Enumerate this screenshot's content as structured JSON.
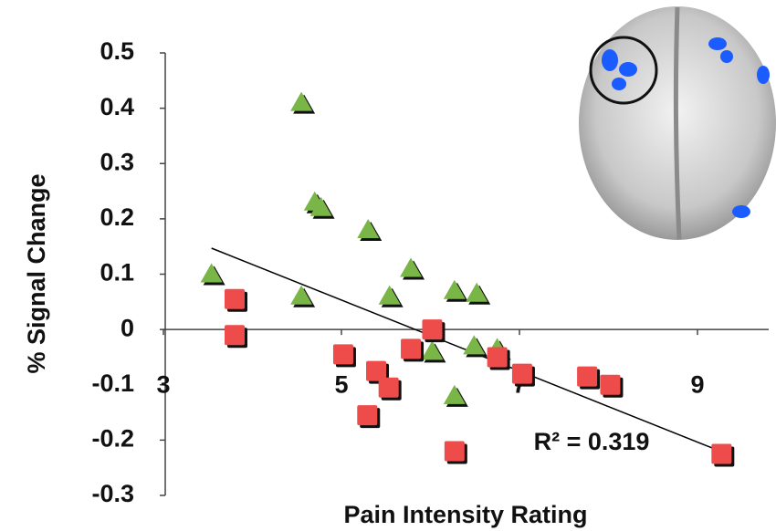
{
  "chart_data": {
    "type": "scatter",
    "xlabel": "Pain Intensity Rating",
    "ylabel": "% Signal Change",
    "xlim": [
      3,
      9.8
    ],
    "ylim": [
      -0.3,
      0.5
    ],
    "xticks": [
      3,
      5,
      7,
      9
    ],
    "yticks": [
      0.5,
      0.4,
      0.3,
      0.2,
      0.1,
      0,
      -0.1,
      -0.2,
      -0.3
    ],
    "series": [
      {
        "marker": "triangle",
        "color": "#79b547",
        "x": [
          3.54,
          4.55,
          4.7,
          4.77,
          5.3,
          4.55,
          5.54,
          5.78,
          6.27,
          6.52,
          6.02,
          6.49,
          6.75,
          6.27
        ],
        "y": [
          0.1,
          0.41,
          0.23,
          0.22,
          0.18,
          0.06,
          0.06,
          0.11,
          0.07,
          0.065,
          -0.04,
          -0.03,
          -0.035,
          -0.12
        ]
      },
      {
        "marker": "square",
        "color": "#ee4b4b",
        "x": [
          3.8,
          3.8,
          5.02,
          5.39,
          5.53,
          5.29,
          5.78,
          6.02,
          6.27,
          6.75,
          7.03,
          7.76,
          8.02,
          9.27
        ],
        "y": [
          0.055,
          -0.01,
          -0.045,
          -0.075,
          -0.105,
          -0.155,
          -0.035,
          0.0,
          -0.22,
          -0.05,
          -0.08,
          -0.085,
          -0.1,
          -0.225
        ]
      }
    ],
    "trendline": {
      "color": "#000000",
      "x": [
        3.54,
        9.27
      ],
      "y": [
        0.147,
        -0.221
      ]
    },
    "annotation": "R² = 0.319"
  }
}
